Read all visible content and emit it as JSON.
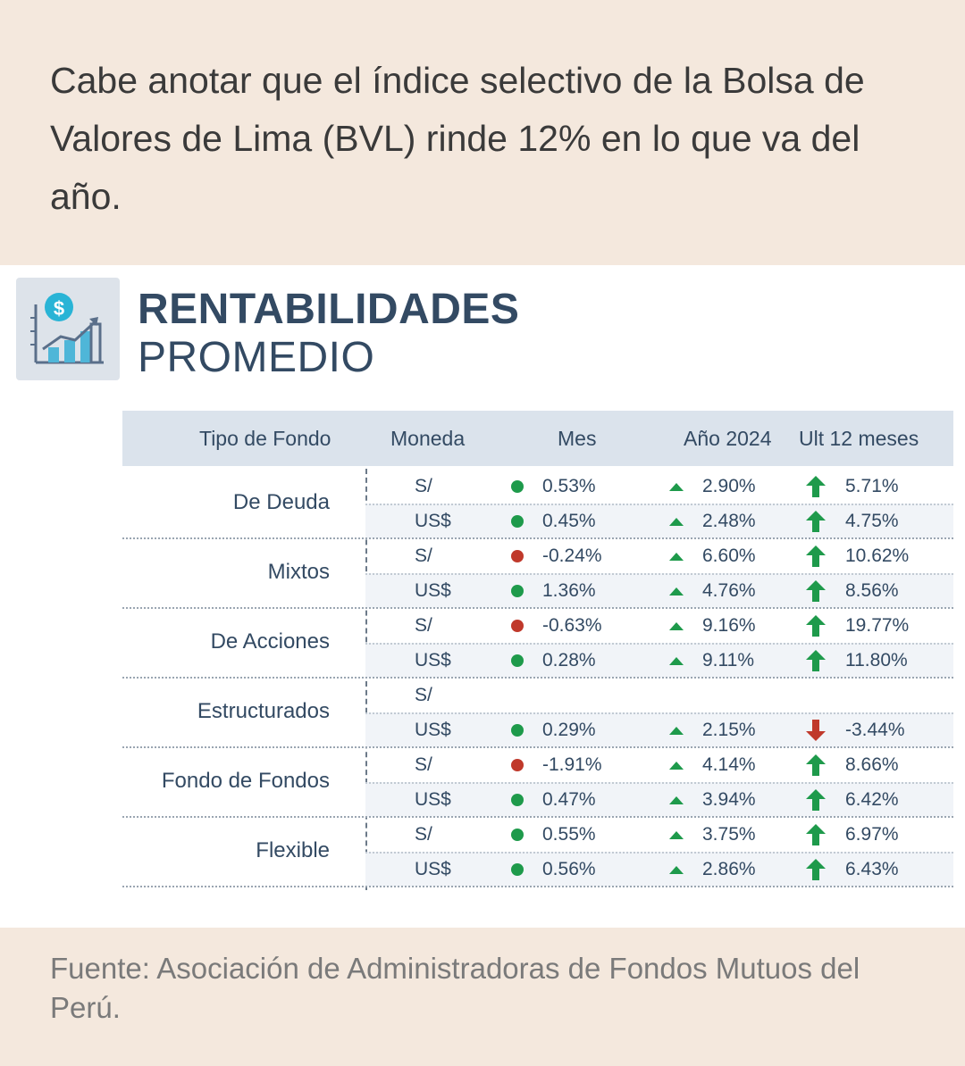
{
  "intro_text": "Cabe anotar que el índice selectivo de la Bolsa de Valores de Lima (BVL) rinde 12% en lo que va del año.",
  "infographic": {
    "logo_icon": "money-growth-chart-icon",
    "title_line1": "RENTABILIDADES",
    "title_line2": "PROMEDIO",
    "columns": [
      "Tipo de Fondo",
      "Moneda",
      "Mes",
      "Año 2024",
      "Ult 12 meses"
    ],
    "colors": {
      "up": "#1e9a4b",
      "down": "#c0392b",
      "text": "#334a63"
    },
    "groups": [
      {
        "name": "De Deuda",
        "rows": [
          {
            "currency": "S/",
            "month": "0.53%",
            "month_status": "up",
            "year": "2.90%",
            "year_status": "up",
            "last12": "5.71%",
            "last12_status": "up"
          },
          {
            "currency": "US$",
            "month": "0.45%",
            "month_status": "up",
            "year": "2.48%",
            "year_status": "up",
            "last12": "4.75%",
            "last12_status": "up"
          }
        ]
      },
      {
        "name": "Mixtos",
        "rows": [
          {
            "currency": "S/",
            "month": "-0.24%",
            "month_status": "down",
            "year": "6.60%",
            "year_status": "up",
            "last12": "10.62%",
            "last12_status": "up"
          },
          {
            "currency": "US$",
            "month": "1.36%",
            "month_status": "up",
            "year": "4.76%",
            "year_status": "up",
            "last12": "8.56%",
            "last12_status": "up"
          }
        ]
      },
      {
        "name": "De Acciones",
        "rows": [
          {
            "currency": "S/",
            "month": "-0.63%",
            "month_status": "down",
            "year": "9.16%",
            "year_status": "up",
            "last12": "19.77%",
            "last12_status": "up"
          },
          {
            "currency": "US$",
            "month": "0.28%",
            "month_status": "up",
            "year": "9.11%",
            "year_status": "up",
            "last12": "11.80%",
            "last12_status": "up"
          }
        ]
      },
      {
        "name": "Estructurados",
        "rows": [
          {
            "currency": "S/",
            "month": "",
            "month_status": "",
            "year": "",
            "year_status": "",
            "last12": "",
            "last12_status": ""
          },
          {
            "currency": "US$",
            "month": "0.29%",
            "month_status": "up",
            "year": "2.15%",
            "year_status": "up",
            "last12": "-3.44%",
            "last12_status": "down"
          }
        ]
      },
      {
        "name": "Fondo de Fondos",
        "rows": [
          {
            "currency": "S/",
            "month": "-1.91%",
            "month_status": "down",
            "year": "4.14%",
            "year_status": "up",
            "last12": "8.66%",
            "last12_status": "up"
          },
          {
            "currency": "US$",
            "month": "0.47%",
            "month_status": "up",
            "year": "3.94%",
            "year_status": "up",
            "last12": "6.42%",
            "last12_status": "up"
          }
        ]
      },
      {
        "name": "Flexible",
        "rows": [
          {
            "currency": "S/",
            "month": "0.55%",
            "month_status": "up",
            "year": "3.75%",
            "year_status": "up",
            "last12": "6.97%",
            "last12_status": "up"
          },
          {
            "currency": "US$",
            "month": "0.56%",
            "month_status": "up",
            "year": "2.86%",
            "year_status": "up",
            "last12": "6.43%",
            "last12_status": "up"
          }
        ]
      }
    ]
  },
  "source_text": "Fuente: Asociación de Administradoras de Fondos Mutuos del Perú."
}
